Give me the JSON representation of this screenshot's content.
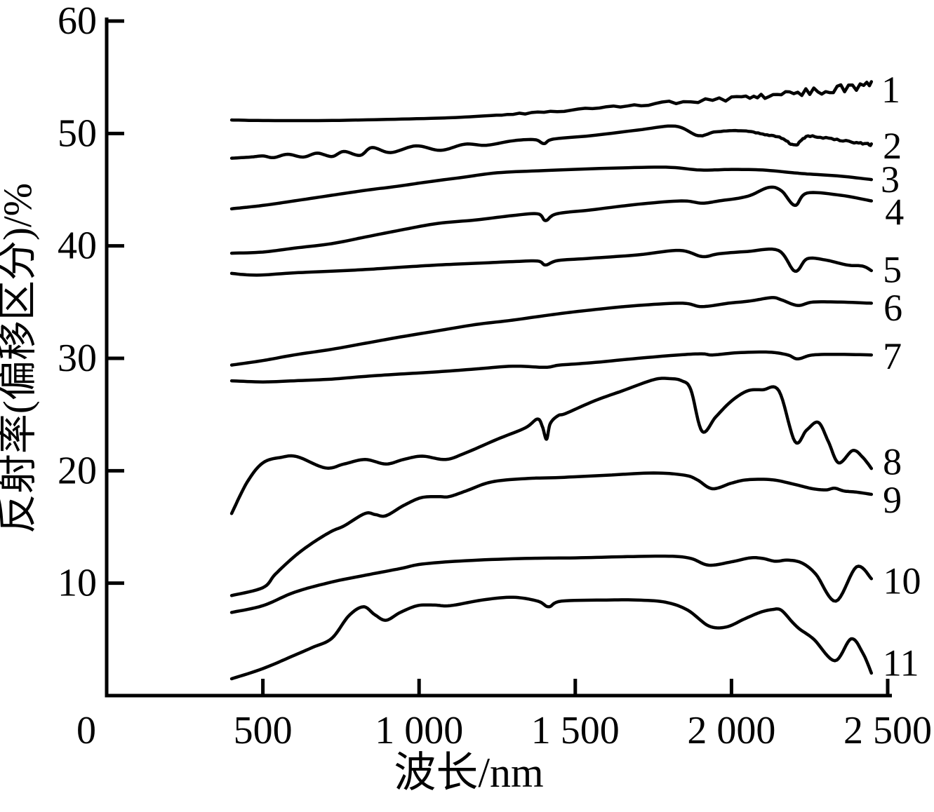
{
  "figure": {
    "background": "#ffffff",
    "ink": "#000000",
    "kind": "spectral reflectance curves figure"
  },
  "chart_data": {
    "type": "line",
    "title": "",
    "xlabel": "波长/nm",
    "ylabel": "反射率(偏移区分)/%",
    "xlim": [
      0,
      2500
    ],
    "ylim": [
      0,
      60
    ],
    "grid": false,
    "legend_position": "labels at right end of each curve",
    "x_ticks": [
      0,
      500,
      1000,
      1500,
      2000,
      2500
    ],
    "x_tick_labels": [
      "0",
      "500",
      "1 000",
      "1 500",
      "2 000",
      "2 500"
    ],
    "y_ticks": [
      10,
      20,
      30,
      40,
      50,
      60
    ],
    "y_tick_labels": [
      "10",
      "20",
      "30",
      "40",
      "50",
      "60"
    ],
    "series": [
      {
        "name": "1",
        "label_pos": [
          2510,
          53.9
        ],
        "noise": {
          "from": 1250,
          "amp": 0.42
        },
        "points": [
          [
            400,
            51.2
          ],
          [
            500,
            51.15
          ],
          [
            700,
            51.15
          ],
          [
            900,
            51.25
          ],
          [
            1100,
            51.4
          ],
          [
            1231,
            51.6
          ],
          [
            1400,
            51.9
          ],
          [
            1600,
            52.3
          ],
          [
            1800,
            52.75
          ],
          [
            2000,
            53.1
          ],
          [
            2120,
            53.4
          ],
          [
            2238,
            53.7
          ],
          [
            2350,
            54.0
          ],
          [
            2448,
            54.3
          ]
        ]
      },
      {
        "name": "2",
        "label_pos": [
          2515,
          48.9
        ],
        "noise": {
          "from": 1900,
          "amp": 0.1
        },
        "points": [
          [
            400,
            47.8
          ],
          [
            460,
            47.9
          ],
          [
            500,
            48.0
          ],
          [
            534,
            47.85
          ],
          [
            579,
            48.15
          ],
          [
            629,
            47.9
          ],
          [
            674,
            48.25
          ],
          [
            721,
            47.95
          ],
          [
            759,
            48.4
          ],
          [
            811,
            48.05
          ],
          [
            849,
            48.75
          ],
          [
            909,
            48.3
          ],
          [
            990,
            48.9
          ],
          [
            1069,
            48.5
          ],
          [
            1147,
            49.05
          ],
          [
            1215,
            48.95
          ],
          [
            1300,
            49.35
          ],
          [
            1370,
            49.45
          ],
          [
            1400,
            49.1
          ],
          [
            1430,
            49.5
          ],
          [
            1550,
            49.8
          ],
          [
            1700,
            50.3
          ],
          [
            1820,
            50.65
          ],
          [
            1894,
            49.8
          ],
          [
            1950,
            50.15
          ],
          [
            2030,
            50.25
          ],
          [
            2100,
            49.95
          ],
          [
            2160,
            49.6
          ],
          [
            2203,
            48.95
          ],
          [
            2245,
            49.75
          ],
          [
            2320,
            49.5
          ],
          [
            2400,
            49.2
          ],
          [
            2448,
            49.0
          ]
        ]
      },
      {
        "name": "3",
        "label_pos": [
          2508,
          45.9
        ],
        "points": [
          [
            400,
            43.3
          ],
          [
            500,
            43.6
          ],
          [
            600,
            44.0
          ],
          [
            720,
            44.5
          ],
          [
            830,
            44.95
          ],
          [
            930,
            45.3
          ],
          [
            1030,
            45.7
          ],
          [
            1140,
            46.1
          ],
          [
            1250,
            46.5
          ],
          [
            1400,
            46.7
          ],
          [
            1600,
            46.9
          ],
          [
            1790,
            47.0
          ],
          [
            1900,
            46.75
          ],
          [
            2000,
            46.8
          ],
          [
            2100,
            46.75
          ],
          [
            2200,
            46.5
          ],
          [
            2242,
            46.4
          ],
          [
            2350,
            46.2
          ],
          [
            2448,
            45.9
          ]
        ]
      },
      {
        "name": "4",
        "label_pos": [
          2522,
          43.0
        ],
        "points": [
          [
            400,
            39.35
          ],
          [
            500,
            39.45
          ],
          [
            600,
            39.8
          ],
          [
            720,
            40.2
          ],
          [
            830,
            40.8
          ],
          [
            940,
            41.4
          ],
          [
            1060,
            42.0
          ],
          [
            1180,
            42.3
          ],
          [
            1300,
            42.7
          ],
          [
            1380,
            42.85
          ],
          [
            1405,
            42.25
          ],
          [
            1440,
            42.85
          ],
          [
            1550,
            43.2
          ],
          [
            1700,
            43.7
          ],
          [
            1840,
            44.0
          ],
          [
            1906,
            43.8
          ],
          [
            1960,
            44.0
          ],
          [
            2050,
            44.4
          ],
          [
            2119,
            45.2
          ],
          [
            2160,
            44.9
          ],
          [
            2203,
            43.6
          ],
          [
            2242,
            44.7
          ],
          [
            2350,
            44.5
          ],
          [
            2448,
            44.0
          ]
        ]
      },
      {
        "name": "5",
        "label_pos": [
          2515,
          37.9
        ],
        "points": [
          [
            400,
            37.55
          ],
          [
            480,
            37.4
          ],
          [
            600,
            37.6
          ],
          [
            720,
            37.75
          ],
          [
            830,
            37.9
          ],
          [
            940,
            38.1
          ],
          [
            1060,
            38.3
          ],
          [
            1180,
            38.45
          ],
          [
            1300,
            38.6
          ],
          [
            1380,
            38.65
          ],
          [
            1405,
            38.3
          ],
          [
            1445,
            38.7
          ],
          [
            1550,
            38.9
          ],
          [
            1700,
            39.2
          ],
          [
            1834,
            39.6
          ],
          [
            1906,
            39.05
          ],
          [
            1960,
            39.3
          ],
          [
            2050,
            39.5
          ],
          [
            2150,
            39.6
          ],
          [
            2203,
            37.75
          ],
          [
            2242,
            38.85
          ],
          [
            2300,
            38.75
          ],
          [
            2370,
            38.3
          ],
          [
            2420,
            38.2
          ],
          [
            2448,
            37.8
          ]
        ]
      },
      {
        "name": "6",
        "label_pos": [
          2517,
          34.5
        ],
        "points": [
          [
            400,
            29.4
          ],
          [
            500,
            29.8
          ],
          [
            600,
            30.3
          ],
          [
            720,
            30.8
          ],
          [
            830,
            31.35
          ],
          [
            940,
            31.9
          ],
          [
            1060,
            32.45
          ],
          [
            1180,
            33.0
          ],
          [
            1300,
            33.4
          ],
          [
            1430,
            33.9
          ],
          [
            1550,
            34.3
          ],
          [
            1700,
            34.7
          ],
          [
            1844,
            34.9
          ],
          [
            1905,
            34.6
          ],
          [
            1990,
            34.9
          ],
          [
            2060,
            35.1
          ],
          [
            2129,
            35.4
          ],
          [
            2160,
            35.2
          ],
          [
            2212,
            34.7
          ],
          [
            2260,
            35.0
          ],
          [
            2350,
            35.0
          ],
          [
            2448,
            34.9
          ]
        ]
      },
      {
        "name": "7",
        "label_pos": [
          2515,
          30.2
        ],
        "points": [
          [
            400,
            28.0
          ],
          [
            500,
            27.9
          ],
          [
            600,
            28.0
          ],
          [
            720,
            28.15
          ],
          [
            830,
            28.4
          ],
          [
            940,
            28.6
          ],
          [
            1060,
            28.8
          ],
          [
            1180,
            29.05
          ],
          [
            1300,
            29.3
          ],
          [
            1404,
            29.2
          ],
          [
            1450,
            29.4
          ],
          [
            1550,
            29.6
          ],
          [
            1700,
            30.0
          ],
          [
            1830,
            30.3
          ],
          [
            1905,
            30.4
          ],
          [
            1940,
            30.3
          ],
          [
            2020,
            30.5
          ],
          [
            2120,
            30.55
          ],
          [
            2180,
            30.3
          ],
          [
            2212,
            29.95
          ],
          [
            2260,
            30.3
          ],
          [
            2350,
            30.35
          ],
          [
            2448,
            30.3
          ]
        ]
      },
      {
        "name": "8",
        "label_pos": [
          2515,
          20.8
        ],
        "points": [
          [
            400,
            16.2
          ],
          [
            450,
            19.0
          ],
          [
            500,
            20.7
          ],
          [
            560,
            21.2
          ],
          [
            610,
            21.25
          ],
          [
            700,
            20.25
          ],
          [
            760,
            20.6
          ],
          [
            827,
            21.0
          ],
          [
            894,
            20.6
          ],
          [
            950,
            21.0
          ],
          [
            1010,
            21.3
          ],
          [
            1085,
            21.0
          ],
          [
            1150,
            21.6
          ],
          [
            1250,
            22.8
          ],
          [
            1339,
            23.8
          ],
          [
            1379,
            24.6
          ],
          [
            1395,
            23.9
          ],
          [
            1408,
            22.8
          ],
          [
            1420,
            24.2
          ],
          [
            1445,
            24.9
          ],
          [
            1470,
            25.1
          ],
          [
            1560,
            26.2
          ],
          [
            1650,
            27.1
          ],
          [
            1751,
            28.1
          ],
          [
            1800,
            28.2
          ],
          [
            1841,
            28.0
          ],
          [
            1870,
            27.2
          ],
          [
            1906,
            23.5
          ],
          [
            1950,
            24.8
          ],
          [
            2000,
            26.2
          ],
          [
            2051,
            27.1
          ],
          [
            2100,
            27.2
          ],
          [
            2152,
            27.1
          ],
          [
            2203,
            22.6
          ],
          [
            2240,
            23.6
          ],
          [
            2278,
            24.3
          ],
          [
            2310,
            22.6
          ],
          [
            2343,
            20.7
          ],
          [
            2388,
            21.8
          ],
          [
            2420,
            21.2
          ],
          [
            2448,
            20.2
          ]
        ]
      },
      {
        "name": "9",
        "label_pos": [
          2515,
          17.4
        ],
        "points": [
          [
            400,
            8.9
          ],
          [
            500,
            9.6
          ],
          [
            540,
            10.8
          ],
          [
            602,
            12.4
          ],
          [
            660,
            13.6
          ],
          [
            719,
            14.6
          ],
          [
            760,
            15.1
          ],
          [
            827,
            16.2
          ],
          [
            860,
            16.1
          ],
          [
            894,
            16.0
          ],
          [
            950,
            16.9
          ],
          [
            1006,
            17.6
          ],
          [
            1060,
            17.7
          ],
          [
            1096,
            17.7
          ],
          [
            1150,
            18.2
          ],
          [
            1231,
            19.0
          ],
          [
            1339,
            19.3
          ],
          [
            1450,
            19.4
          ],
          [
            1600,
            19.6
          ],
          [
            1751,
            19.8
          ],
          [
            1850,
            19.6
          ],
          [
            1890,
            19.2
          ],
          [
            1939,
            18.4
          ],
          [
            2000,
            18.9
          ],
          [
            2051,
            19.2
          ],
          [
            2130,
            19.2
          ],
          [
            2200,
            18.8
          ],
          [
            2260,
            18.4
          ],
          [
            2303,
            18.3
          ],
          [
            2330,
            18.45
          ],
          [
            2360,
            18.2
          ],
          [
            2400,
            18.1
          ],
          [
            2448,
            17.9
          ]
        ]
      },
      {
        "name": "10",
        "label_pos": [
          2546,
          10.2
        ],
        "points": [
          [
            400,
            7.4
          ],
          [
            500,
            8.0
          ],
          [
            602,
            9.2
          ],
          [
            720,
            10.1
          ],
          [
            827,
            10.7
          ],
          [
            940,
            11.3
          ],
          [
            1010,
            11.7
          ],
          [
            1150,
            12.0
          ],
          [
            1339,
            12.2
          ],
          [
            1500,
            12.25
          ],
          [
            1650,
            12.35
          ],
          [
            1800,
            12.4
          ],
          [
            1870,
            12.2
          ],
          [
            1927,
            11.6
          ],
          [
            2000,
            11.9
          ],
          [
            2060,
            12.25
          ],
          [
            2100,
            12.2
          ],
          [
            2140,
            11.95
          ],
          [
            2180,
            12.05
          ],
          [
            2225,
            11.8
          ],
          [
            2270,
            10.8
          ],
          [
            2334,
            8.4
          ],
          [
            2400,
            11.45
          ],
          [
            2448,
            10.4
          ]
        ]
      },
      {
        "name": "11",
        "label_pos": [
          2542,
          2.9
        ],
        "points": [
          [
            400,
            1.5
          ],
          [
            500,
            2.4
          ],
          [
            602,
            3.6
          ],
          [
            660,
            4.3
          ],
          [
            721,
            5.1
          ],
          [
            775,
            7.1
          ],
          [
            822,
            7.9
          ],
          [
            858,
            7.2
          ],
          [
            894,
            6.7
          ],
          [
            940,
            7.4
          ],
          [
            995,
            8.0
          ],
          [
            1050,
            8.05
          ],
          [
            1100,
            8.0
          ],
          [
            1202,
            8.5
          ],
          [
            1300,
            8.75
          ],
          [
            1380,
            8.4
          ],
          [
            1415,
            7.9
          ],
          [
            1455,
            8.4
          ],
          [
            1600,
            8.5
          ],
          [
            1700,
            8.5
          ],
          [
            1790,
            8.3
          ],
          [
            1860,
            7.6
          ],
          [
            1927,
            6.2
          ],
          [
            1983,
            6.1
          ],
          [
            2040,
            6.8
          ],
          [
            2091,
            7.4
          ],
          [
            2130,
            7.65
          ],
          [
            2159,
            7.6
          ],
          [
            2196,
            6.5
          ],
          [
            2219,
            5.9
          ],
          [
            2264,
            5.0
          ],
          [
            2331,
            3.1
          ],
          [
            2383,
            5.05
          ],
          [
            2420,
            3.8
          ],
          [
            2448,
            2.0
          ]
        ]
      }
    ]
  }
}
